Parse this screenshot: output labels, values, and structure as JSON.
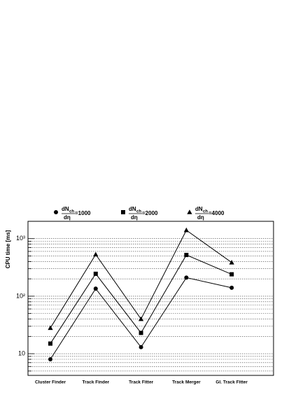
{
  "chart_data": {
    "type": "line",
    "ylabel": "CPU time [ms]",
    "categories": [
      "Cluster Finder",
      "Track Finder",
      "Track Fitter",
      "Track Merger",
      "Gl. Track Fitter"
    ],
    "legend_fraction": {
      "numerator": "dN",
      "subscript": "ch",
      "denominator": "dη"
    },
    "series": [
      {
        "name": "=1000",
        "color": "#000000",
        "marker": "circle",
        "values": [
          8,
          135,
          13,
          210,
          140
        ]
      },
      {
        "name": "=2000",
        "color": "#000000",
        "marker": "square",
        "values": [
          15,
          245,
          23,
          520,
          240
        ]
      },
      {
        "name": "=4000",
        "color": "#000000",
        "marker": "triangle",
        "values": [
          28,
          530,
          40,
          1400,
          385
        ]
      }
    ],
    "log_y": true,
    "ylim": [
      4.2,
      2000
    ],
    "yticks": [
      10,
      {
        "value": 100,
        "label": "10²"
      },
      {
        "value": 1000,
        "label": "10³"
      }
    ],
    "minor_yticks": [
      5,
      6,
      7,
      8,
      9,
      20,
      30,
      40,
      50,
      60,
      70,
      80,
      90,
      200,
      300,
      400,
      500,
      600,
      700,
      800,
      900,
      2000
    ],
    "grid": true
  }
}
